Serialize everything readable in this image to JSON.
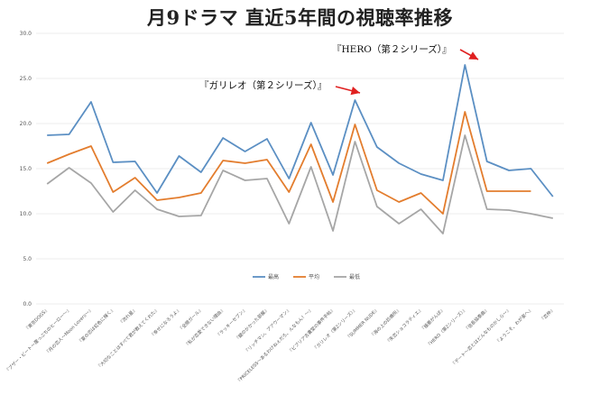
{
  "title": "月9ドラマ 直近5年間の視聴率推移",
  "annotations": {
    "hero": "『HERO（第２シリーズ）』",
    "galileo": "『ガリレオ（第２シリーズ）』"
  },
  "chart_data": {
    "type": "line",
    "title": "月9ドラマ 直近5年間の視聴率推移",
    "xlabel": "",
    "ylabel": "",
    "ylim": [
      0,
      30
    ],
    "yticks": [
      "0.0",
      "5.0",
      "10.0",
      "15.0",
      "20.0",
      "25.0",
      "30.0"
    ],
    "grid": "horizontal",
    "legend_position": "bottom-center",
    "categories": [
      "『東京DOGS』",
      "『ブザー・ビート〜崖っぷちのヒーロー〜』",
      "『月の恋人〜Moon Lovers〜』",
      "『夏の恋は虹色に輝く』",
      "『流れ星』",
      "『大切なことはすべて君が教えてくれた』",
      "『幸せになろうよ』",
      "『全開ガール』",
      "『私が恋愛できない理由』",
      "『ラッキーセブン』",
      "『鍵のかかった部屋』",
      "『リッチマン、プアウーマン』",
      "『PRICELESS〜あるわけねぇだろ、んなもん！〜』",
      "『ビブリア古書堂の事件手帖』",
      "『ガリレオ（第2シリーズ）』",
      "『SUMMER NUDE』",
      "『海の上の診療所』",
      "『失恋ショコラティエ』",
      "『極悪がんぼ』",
      "『HERO（第2シリーズ）』",
      "『信長協奏曲』",
      "『デート〜恋とはどんなものかしら〜』",
      "『ようこそ、わが家へ』",
      "『恋仲』"
    ],
    "series": [
      {
        "name": "最高",
        "color": "#5b8fc3",
        "values": [
          18.7,
          18.8,
          22.4,
          15.7,
          15.8,
          12.3,
          16.4,
          14.6,
          18.4,
          16.9,
          18.3,
          13.9,
          20.1,
          14.3,
          22.6,
          17.4,
          15.6,
          14.4,
          13.7,
          26.5,
          15.8,
          14.8,
          15.0,
          11.9
        ]
      },
      {
        "name": "平均",
        "color": "#e37d2e",
        "values": [
          15.6,
          16.6,
          17.5,
          12.4,
          14.0,
          11.5,
          11.8,
          12.3,
          15.9,
          15.6,
          16.0,
          12.4,
          17.7,
          11.3,
          19.9,
          12.6,
          11.3,
          12.3,
          10.0,
          21.3,
          12.5,
          12.5,
          12.5,
          null
        ]
      },
      {
        "name": "最低",
        "color": "#a6a6a6",
        "values": [
          13.3,
          15.1,
          13.4,
          10.2,
          12.6,
          10.5,
          9.7,
          9.8,
          14.8,
          13.7,
          13.9,
          8.9,
          15.2,
          8.1,
          18.0,
          10.8,
          8.9,
          10.5,
          7.8,
          18.7,
          10.5,
          10.4,
          10.0,
          9.5
        ]
      }
    ]
  }
}
